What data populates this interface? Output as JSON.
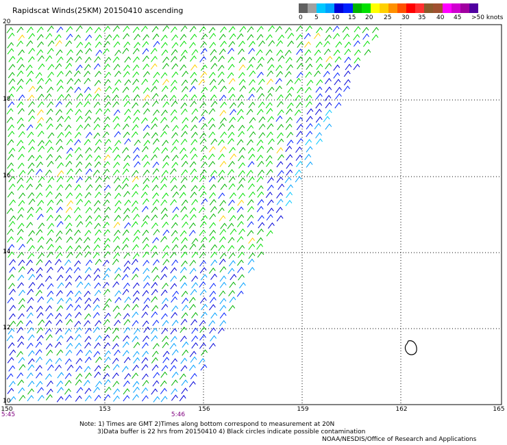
{
  "title": "Rapidscat Winds(25KM) 20150410 ascending",
  "scale": {
    "colors": [
      "#606060",
      "#a0a0a0",
      "#00c8ff",
      "#00a0ff",
      "#0000d8",
      "#0020ff",
      "#00b400",
      "#00e000",
      "#ffff00",
      "#ffd000",
      "#ff9000",
      "#ff5000",
      "#ff0000",
      "#ff3030",
      "#8b5a2b",
      "#a05030",
      "#ff00ff",
      "#d000d0",
      "#a000a0",
      "#5000a0"
    ],
    "labels": [
      "0",
      "5",
      "10",
      "15",
      "20",
      "25",
      "30",
      "35",
      "40",
      "45",
      ">50 knots"
    ]
  },
  "map": {
    "lat_labels": [
      "20",
      "18",
      "16",
      "14",
      "12",
      "10"
    ],
    "lon_labels": [
      "150",
      "153",
      "156",
      "159",
      "162",
      "165"
    ],
    "times": [
      "5:45",
      "5:46"
    ]
  },
  "notes": {
    "line1": "Note: 1) Times are GMT 2)Times along bottom correspond to measurement at 20N",
    "line2": "3)Data buffer is 22 hrs from 20150410 4) Black circles indicate possible contamination",
    "line3": "NOAA/NESDIS/Office of Research and Applications"
  }
}
